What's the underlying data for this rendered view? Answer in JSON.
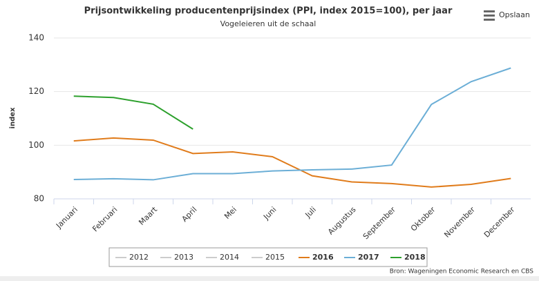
{
  "chart_data": {
    "type": "line",
    "title": "Prijsontwikkeling producentenprijsindex (PPI, index 2015=100), per jaar",
    "subtitle": "Vogeleieren uit de schaal",
    "y_label": "index",
    "source": "Bron: Wageningen Economic Research en CBS",
    "export_button": "Opslaan",
    "categories": [
      "Januari",
      "Februari",
      "Maart",
      "April",
      "Mei",
      "Juni",
      "Juli",
      "Augustus",
      "September",
      "Oktober",
      "November",
      "December"
    ],
    "ylim": [
      80,
      140
    ],
    "yticks": [
      80,
      100,
      120,
      140
    ],
    "grid": true,
    "series": [
      {
        "name": "2012",
        "color": "#cccccc",
        "visible": false,
        "values": [
          null,
          null,
          null,
          null,
          null,
          null,
          null,
          null,
          null,
          null,
          null,
          null
        ]
      },
      {
        "name": "2013",
        "color": "#cccccc",
        "visible": false,
        "values": [
          null,
          null,
          null,
          null,
          null,
          null,
          null,
          null,
          null,
          null,
          null,
          null
        ]
      },
      {
        "name": "2014",
        "color": "#cccccc",
        "visible": false,
        "values": [
          null,
          null,
          null,
          null,
          null,
          null,
          null,
          null,
          null,
          null,
          null,
          null
        ]
      },
      {
        "name": "2015",
        "color": "#cccccc",
        "visible": false,
        "values": [
          null,
          null,
          null,
          null,
          null,
          null,
          null,
          null,
          null,
          null,
          null,
          null
        ]
      },
      {
        "name": "2016",
        "color": "#e07b1a",
        "visible": true,
        "values": [
          101.6,
          102.7,
          101.9,
          96.9,
          97.5,
          95.7,
          88.6,
          86.3,
          85.7,
          84.4,
          85.4,
          87.6
        ]
      },
      {
        "name": "2017",
        "color": "#6baed6",
        "visible": true,
        "values": [
          87.2,
          87.5,
          87.1,
          89.4,
          89.4,
          90.4,
          90.8,
          91.1,
          92.6,
          115.2,
          123.7,
          128.8
        ]
      },
      {
        "name": "2018",
        "color": "#2ca02c",
        "visible": true,
        "values": [
          118.3,
          117.8,
          115.3,
          106.0,
          null,
          null,
          null,
          null,
          null,
          null,
          null,
          null
        ]
      }
    ]
  }
}
